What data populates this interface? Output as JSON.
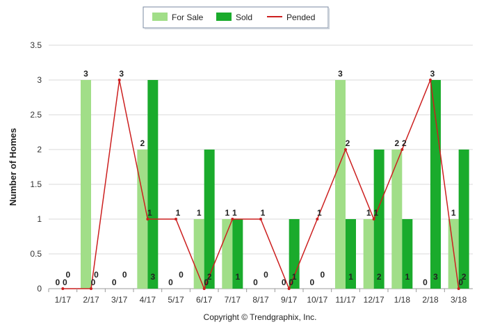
{
  "chart_data": {
    "type": "bar",
    "title": "",
    "xlabel": "",
    "ylabel": "Number of Homes",
    "ylim": [
      0,
      3.5
    ],
    "yticks": [
      "0",
      "0.5",
      "1",
      "1.5",
      "2",
      "2.5",
      "3",
      "3.5"
    ],
    "grid": true,
    "legend_position": "top-center",
    "categories": [
      "1/17",
      "2/17",
      "3/17",
      "4/17",
      "5/17",
      "6/17",
      "7/17",
      "8/17",
      "9/17",
      "10/17",
      "11/17",
      "12/17",
      "1/18",
      "2/18",
      "3/18"
    ],
    "series": [
      {
        "name": "For Sale",
        "type": "bar",
        "color": "#a1de88",
        "values": [
          0,
          3,
          0,
          2,
          0,
          1,
          1,
          0,
          0,
          0,
          3,
          1,
          2,
          0,
          1
        ]
      },
      {
        "name": "Sold",
        "type": "bar",
        "color": "#1aab2c",
        "values": [
          0,
          0,
          0,
          3,
          0,
          2,
          1,
          0,
          1,
          0,
          1,
          2,
          1,
          3,
          2
        ]
      },
      {
        "name": "Pended",
        "type": "line",
        "color": "#cc1f1f",
        "values": [
          0,
          0,
          3,
          1,
          1,
          0,
          1,
          1,
          0,
          1,
          2,
          1,
          2,
          3,
          0
        ]
      }
    ],
    "footer": "Copyright © Trendgraphix, Inc."
  }
}
